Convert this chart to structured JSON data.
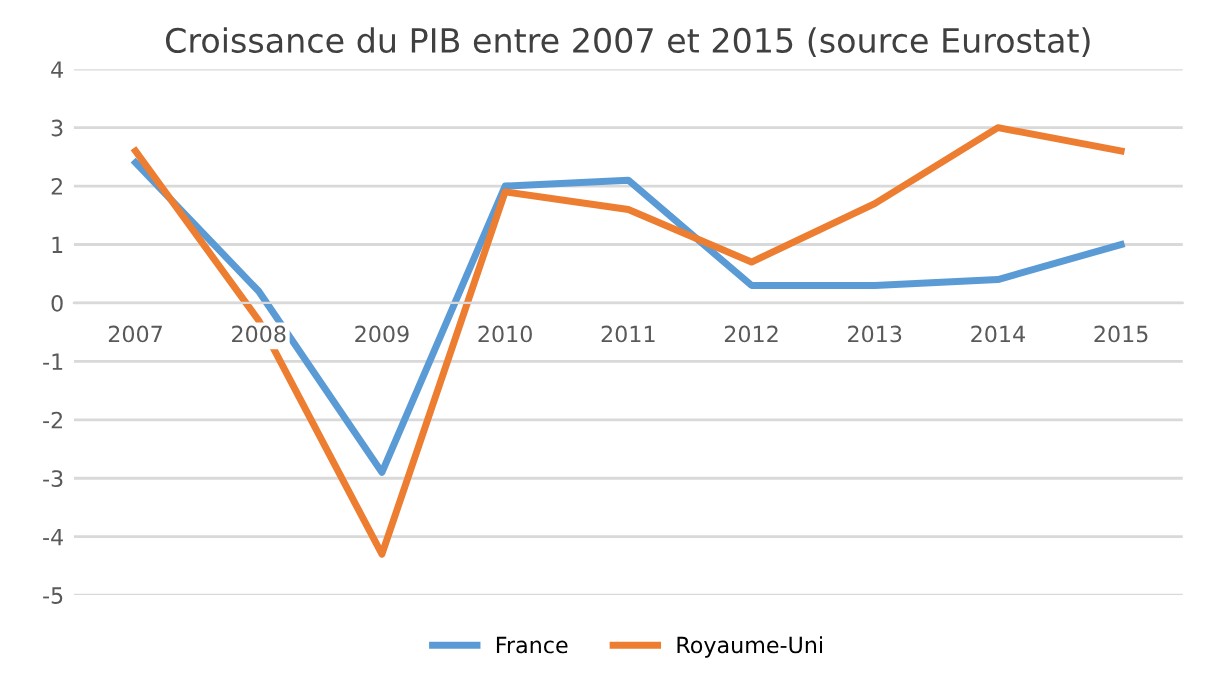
{
  "chart_data": {
    "type": "line",
    "title": "Croissance du PIB entre 2007 et 2015 (source Eurostat)",
    "categories": [
      "2007",
      "2008",
      "2009",
      "2010",
      "2011",
      "2012",
      "2013",
      "2014",
      "2015"
    ],
    "series": [
      {
        "name": "France",
        "color": "#5b9bd5",
        "values": [
          2.4,
          0.2,
          -2.9,
          2.0,
          2.1,
          0.3,
          0.3,
          0.4,
          1.0
        ]
      },
      {
        "name": "Royaume-Uni",
        "color": "#ed7d31",
        "values": [
          2.6,
          -0.3,
          -4.3,
          1.9,
          1.6,
          0.7,
          1.7,
          3.0,
          2.6
        ]
      }
    ],
    "ylim": [
      -5,
      4
    ],
    "yticks": [
      -5,
      -4,
      -3,
      -2,
      -1,
      0,
      1,
      2,
      3,
      4
    ],
    "grid": "y",
    "legend": "bottom",
    "marker": "none",
    "line_style": "solid"
  }
}
